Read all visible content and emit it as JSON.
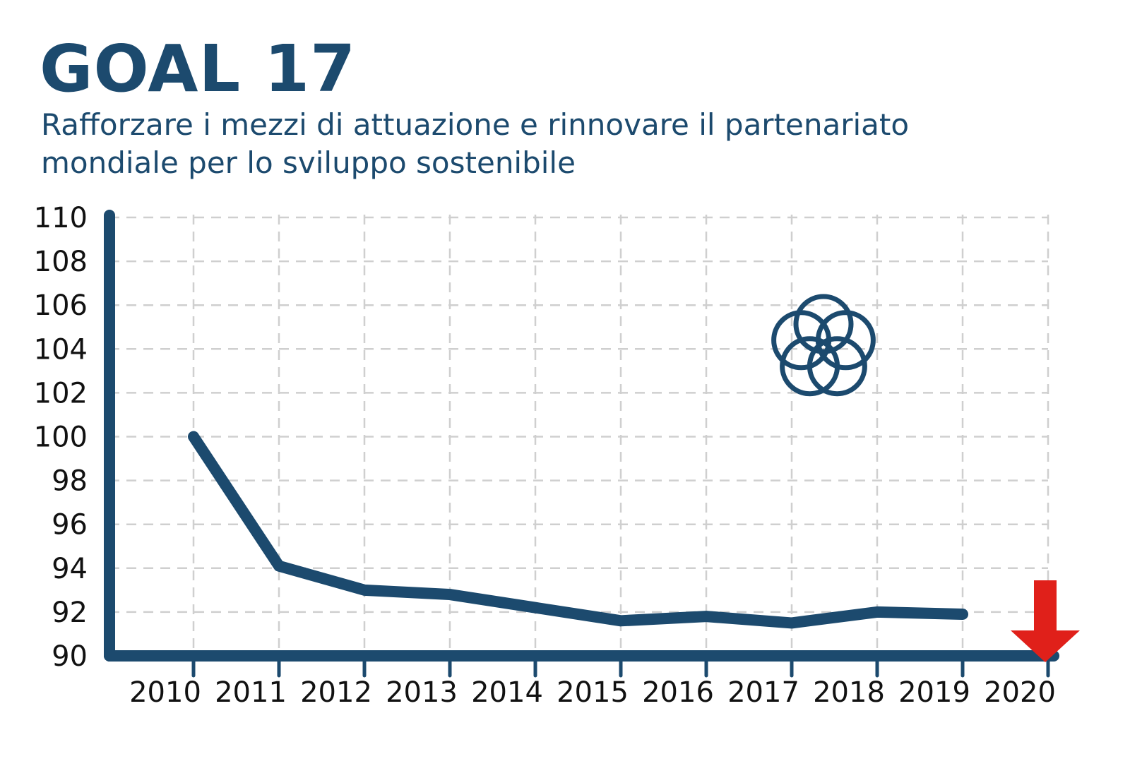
{
  "header": {
    "title": "GOAL 17",
    "subtitle": "Rafforzare i mezzi di attuazione e rinnovare il partenariato mondiale per lo sviluppo sostenibile"
  },
  "colors": {
    "primary": "#1c4a6e",
    "grid": "#cfcfcf",
    "arrow": "#e0201a",
    "tick_text": "#111111"
  },
  "icon": "five-interlocking-circles-icon",
  "trend_indicator": {
    "icon": "down-arrow-icon",
    "meaning": "decreasing"
  },
  "chart_data": {
    "type": "line",
    "title": "",
    "xlabel": "",
    "ylabel": "",
    "x": [
      "2010",
      "2011",
      "2012",
      "2013",
      "2014",
      "2015",
      "2016",
      "2017",
      "2018",
      "2019"
    ],
    "x_ticks": [
      "2010",
      "2011",
      "2012",
      "2013",
      "2014",
      "2015",
      "2016",
      "2017",
      "2018",
      "2019",
      "2020"
    ],
    "y_ticks": [
      "110",
      "108",
      "106",
      "104",
      "102",
      "100",
      "98",
      "96",
      "94",
      "92",
      "90"
    ],
    "series": [
      {
        "values": [
          100,
          94.1,
          93.0,
          92.8,
          92.2,
          91.6,
          91.8,
          91.5,
          92.0,
          91.9
        ]
      }
    ],
    "ylim": [
      90,
      110
    ],
    "grid": true,
    "grid_style": "dashed",
    "legend": "none"
  }
}
